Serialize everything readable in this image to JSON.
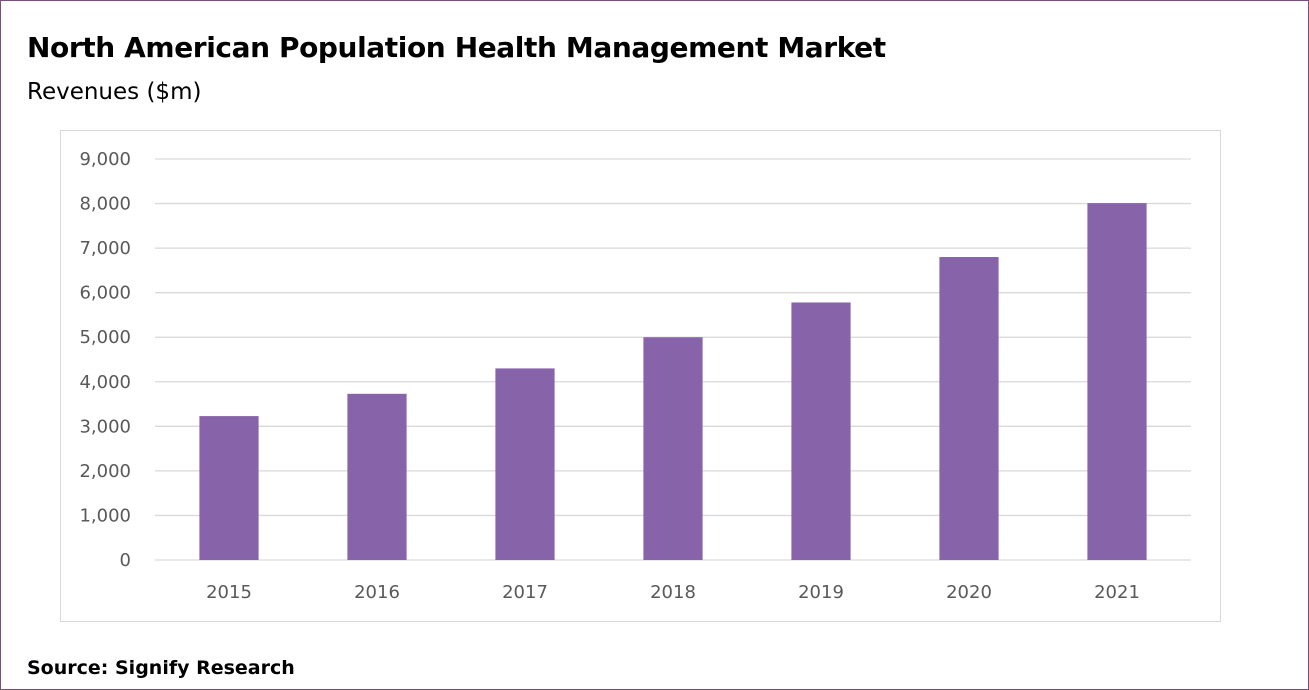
{
  "title": "North American Population Health Management Market",
  "subtitle": "Revenues ($m)",
  "source": "Source: Signify Research",
  "colors": {
    "bar": "#8764a9",
    "gridline": "#d9d9d9",
    "tick_text": "#595959",
    "frame": "#7a4f80"
  },
  "chart_data": {
    "type": "bar",
    "categories": [
      "2015",
      "2016",
      "2017",
      "2018",
      "2019",
      "2020",
      "2021"
    ],
    "values": [
      3230,
      3730,
      4300,
      5000,
      5780,
      6800,
      8010
    ],
    "ylim": [
      0,
      9000
    ],
    "yticks": [
      0,
      1000,
      2000,
      3000,
      4000,
      5000,
      6000,
      7000,
      8000,
      9000
    ],
    "ytick_labels": [
      "0",
      "1,000",
      "2,000",
      "3,000",
      "4,000",
      "5,000",
      "6,000",
      "7,000",
      "8,000",
      "9,000"
    ],
    "grid": true,
    "legend": "none"
  }
}
